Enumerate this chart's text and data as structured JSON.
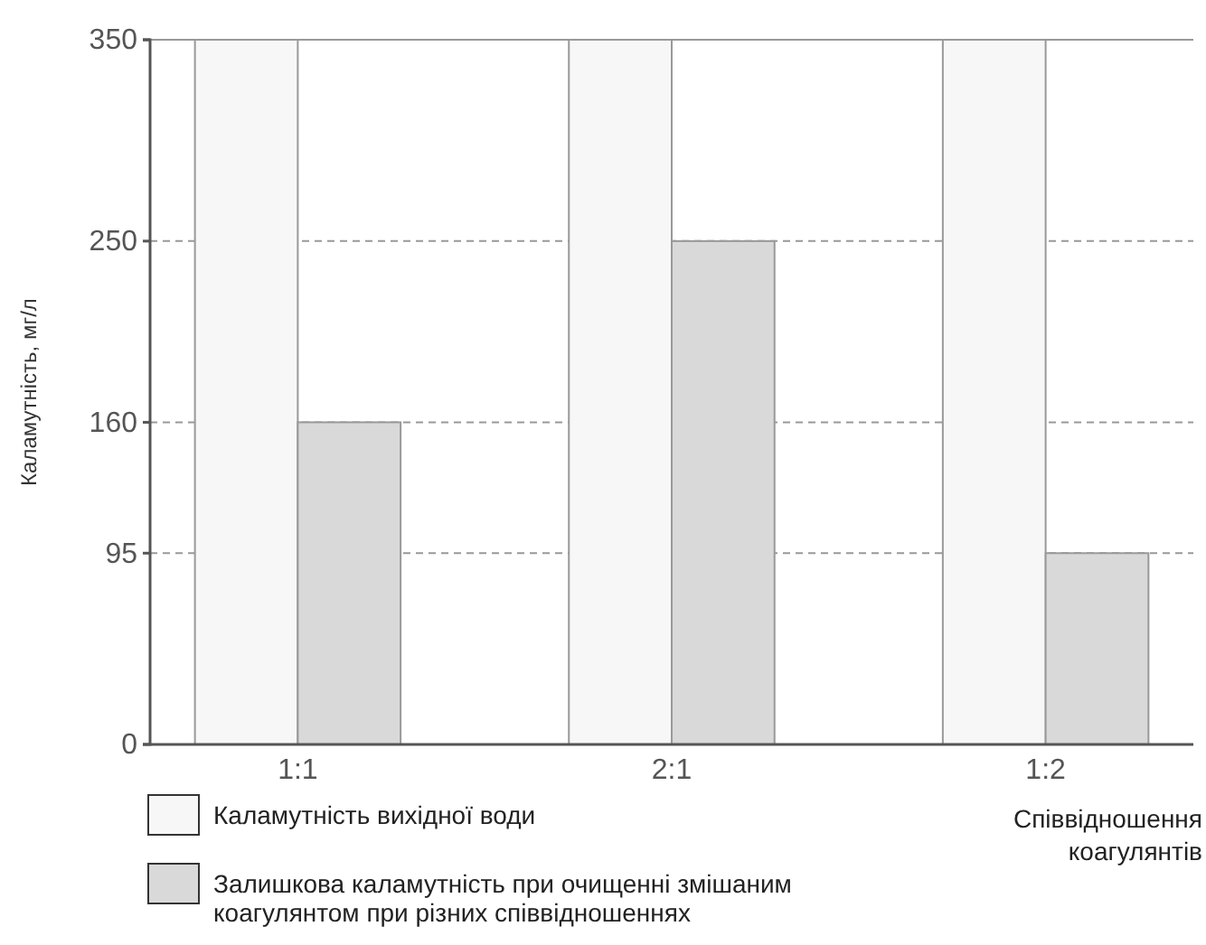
{
  "chart_data": {
    "type": "bar",
    "categories": [
      "1:1",
      "2:1",
      "1:2"
    ],
    "series": [
      {
        "name": "Каламутність вихідної води",
        "color": "#f7f7f7",
        "values": [
          350,
          350,
          350
        ]
      },
      {
        "name": "Залишкова каламутність при очищенні змішаним коагулянтом при різних співвідношеннях",
        "color": "#d9d9d9",
        "values": [
          160,
          250,
          95
        ]
      }
    ],
    "ylim": [
      0,
      350
    ],
    "yticks": [
      0,
      95,
      160,
      250,
      350
    ],
    "grid": "y",
    "legend": "bottom",
    "xlabel": "Співвідношення коагулянтів",
    "ylabel": "Каламутність, мг/л"
  }
}
